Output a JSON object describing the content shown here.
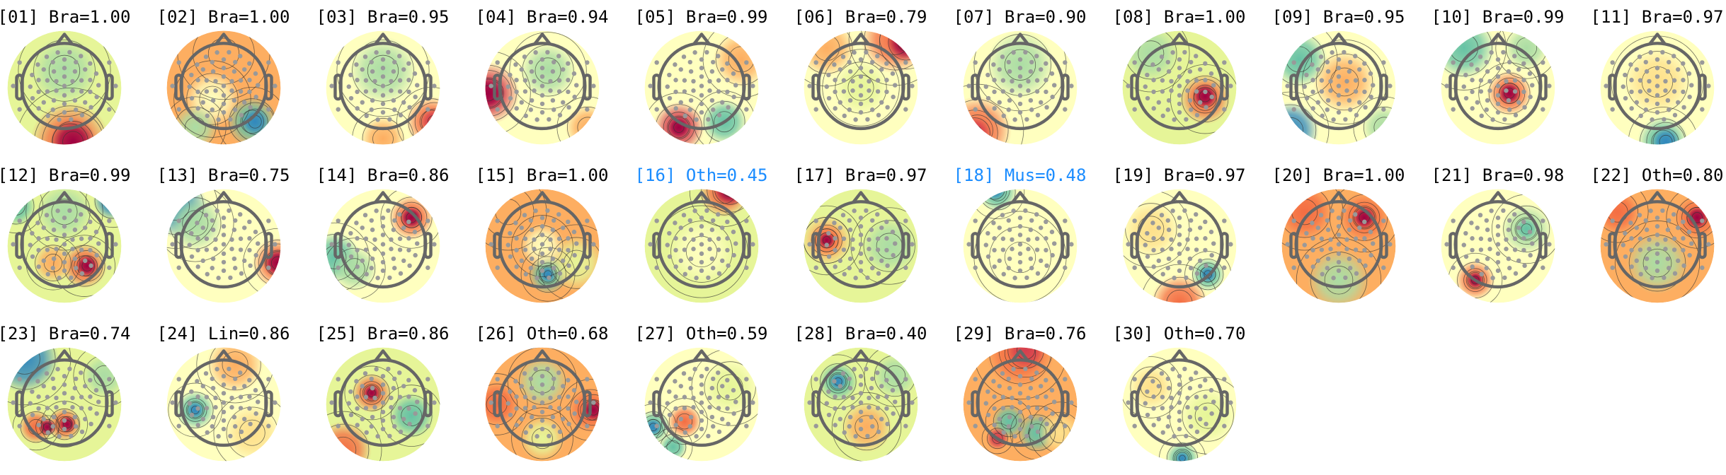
{
  "highlight_color": "#1a8cff",
  "colormap": [
    "#9e0142",
    "#d53e4f",
    "#f46d43",
    "#fdae61",
    "#fee08b",
    "#ffffbf",
    "#e6f598",
    "#abdda4",
    "#66c2a5",
    "#3288bd",
    "#5e4fa2"
  ],
  "components": [
    {
      "title": "[01] Bra=1.00",
      "highlighted": false
    },
    {
      "title": "[02] Bra=1.00",
      "highlighted": false
    },
    {
      "title": "[03] Bra=0.95",
      "highlighted": false
    },
    {
      "title": "[04] Bra=0.94",
      "highlighted": false
    },
    {
      "title": "[05] Bra=0.99",
      "highlighted": false
    },
    {
      "title": "[06] Bra=0.79",
      "highlighted": false
    },
    {
      "title": "[07] Bra=0.90",
      "highlighted": false
    },
    {
      "title": "[08] Bra=1.00",
      "highlighted": false
    },
    {
      "title": "[09] Bra=0.95",
      "highlighted": false
    },
    {
      "title": "[10] Bra=0.99",
      "highlighted": false
    },
    {
      "title": "[11] Bra=0.97",
      "highlighted": false
    },
    {
      "title": "[12] Bra=0.99",
      "highlighted": false
    },
    {
      "title": "[13] Bra=0.75",
      "highlighted": false
    },
    {
      "title": "[14] Bra=0.86",
      "highlighted": false
    },
    {
      "title": "[15] Bra=1.00",
      "highlighted": false
    },
    {
      "title": "[16] Oth=0.45",
      "highlighted": true
    },
    {
      "title": "[17] Bra=0.97",
      "highlighted": false
    },
    {
      "title": "[18] Mus=0.48",
      "highlighted": true
    },
    {
      "title": "[19] Bra=0.97",
      "highlighted": false
    },
    {
      "title": "[20] Bra=1.00",
      "highlighted": false
    },
    {
      "title": "[21] Bra=0.98",
      "highlighted": false
    },
    {
      "title": "[22] Oth=0.80",
      "highlighted": false
    },
    {
      "title": "[23] Bra=0.74",
      "highlighted": false
    },
    {
      "title": "[24] Lin=0.86",
      "highlighted": false
    },
    {
      "title": "[25] Bra=0.86",
      "highlighted": false
    },
    {
      "title": "[26] Oth=0.68",
      "highlighted": false
    },
    {
      "title": "[27] Oth=0.59",
      "highlighted": false
    },
    {
      "title": "[28] Bra=0.40",
      "highlighted": false
    },
    {
      "title": "[29] Bra=0.76",
      "highlighted": false
    },
    {
      "title": "[30] Oth=0.70",
      "highlighted": false
    }
  ]
}
